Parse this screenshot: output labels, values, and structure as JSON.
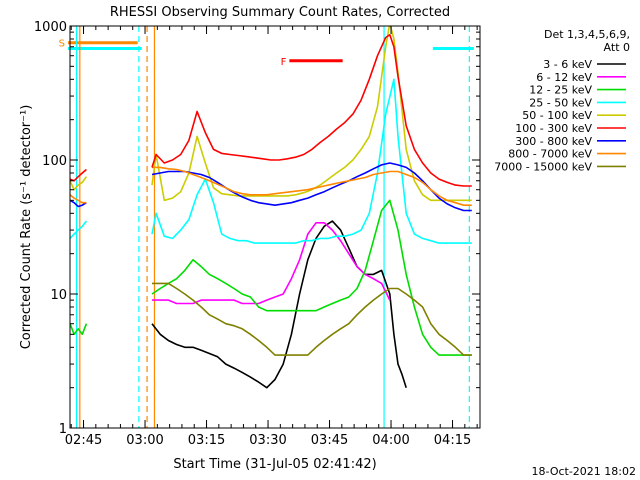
{
  "chart_data": {
    "type": "line",
    "title": "RHESSI Observing Summary Count Rates, Corrected",
    "xlabel": "Start Time (31-Jul-05 02:41:42)",
    "ylabel": "Corrected Count Rate (s⁻¹ detector⁻¹)",
    "y_scale": "log",
    "ylim": [
      1,
      1000
    ],
    "xlim_minutes_after_start": [
      0,
      100
    ],
    "x_ticks": [
      {
        "label": "02:45",
        "t": 3.3
      },
      {
        "label": "03:00",
        "t": 18.3
      },
      {
        "label": "03:15",
        "t": 33.3
      },
      {
        "label": "03:30",
        "t": 48.3
      },
      {
        "label": "03:45",
        "t": 63.3
      },
      {
        "label": "04:00",
        "t": 78.3
      },
      {
        "label": "04:15",
        "t": 93.3
      }
    ],
    "y_ticks": [
      {
        "label": "1",
        "v": 1
      },
      {
        "label": "10",
        "v": 10
      },
      {
        "label": "100",
        "v": 100
      },
      {
        "label": "1000",
        "v": 1000
      }
    ],
    "legend": {
      "header1": "Det 1,3,4,5,6,9,",
      "header2": "Att 0",
      "placement": "right"
    },
    "series": [
      {
        "name": "3 - 6 keV",
        "color": "#000000",
        "segments": [
          {
            "t": [
              20,
              22,
              24,
              26,
              28,
              30,
              32,
              34,
              36,
              38,
              40,
              42,
              44,
              46,
              48,
              50,
              52,
              54,
              56,
              58,
              60,
              62,
              64,
              66,
              68,
              70,
              72,
              74,
              76,
              78,
              79,
              80,
              81,
              82
            ],
            "y": [
              6,
              5,
              4.5,
              4.2,
              4,
              4,
              3.8,
              3.6,
              3.4,
              3,
              2.8,
              2.6,
              2.4,
              2.2,
              2,
              2.3,
              3,
              5,
              10,
              18,
              26,
              32,
              35,
              30,
              22,
              16,
              14,
              14,
              15,
              10,
              5,
              3,
              2.5,
              2
            ]
          }
        ]
      },
      {
        "name": "6 - 12 keV",
        "color": "#ff00ff",
        "segments": [
          {
            "t": [
              20,
              22,
              24,
              26,
              28,
              30,
              32,
              34,
              36,
              38,
              40,
              42,
              44,
              46,
              48,
              50,
              52,
              54,
              56,
              58,
              60,
              62,
              64,
              66,
              68,
              70,
              72,
              74,
              76,
              78
            ],
            "y": [
              9,
              9,
              9,
              8.5,
              8.5,
              8.5,
              9,
              9,
              9,
              9,
              9,
              8.5,
              8.5,
              8.5,
              9,
              9.5,
              10,
              13,
              18,
              28,
              34,
              34,
              30,
              25,
              20,
              16,
              14,
              13,
              12,
              9
            ]
          }
        ]
      },
      {
        "name": "12 - 25 keV",
        "color": "#00dd00",
        "segments": [
          {
            "t": [
              0,
              1,
              2,
              3,
              4
            ],
            "y": [
              6,
              5,
              5.5,
              5,
              6
            ]
          },
          {
            "t": [
              20,
              22,
              24,
              26,
              28,
              30,
              32,
              34,
              36,
              38,
              40,
              42,
              44,
              46,
              48,
              50,
              52,
              54,
              56,
              58,
              60,
              62,
              64,
              66,
              68,
              70,
              72,
              74,
              76,
              78,
              80,
              82,
              84,
              86,
              88,
              90,
              92,
              94,
              96,
              98
            ],
            "y": [
              10,
              11,
              12,
              13,
              15,
              18,
              16,
              14,
              13,
              12,
              11,
              10,
              9.5,
              8,
              7.5,
              7.5,
              7.5,
              7.5,
              7.5,
              7.5,
              7.5,
              8,
              8.5,
              9,
              9.5,
              11,
              15,
              25,
              42,
              50,
              30,
              14,
              8,
              5,
              4,
              3.5,
              3.5,
              3.5,
              3.5,
              3.5
            ]
          }
        ]
      },
      {
        "name": "25 - 50 keV",
        "color": "#00ffff",
        "segments": [
          {
            "t": [
              0,
              1,
              2,
              3,
              4
            ],
            "y": [
              26,
              28,
              30,
              32,
              35
            ]
          },
          {
            "t": [
              20,
              21,
              23,
              25,
              27,
              29,
              31,
              33,
              35,
              37,
              39,
              41,
              43,
              45,
              47,
              49,
              51,
              53,
              55,
              57,
              59,
              61,
              63,
              65,
              67,
              69,
              71,
              73,
              75,
              77,
              79,
              80,
              82,
              84,
              86,
              88,
              90,
              92,
              94,
              96,
              98
            ],
            "y": [
              28,
              40,
              27,
              26,
              30,
              36,
              55,
              72,
              48,
              28,
              26,
              25,
              25,
              24,
              24,
              24,
              24,
              24,
              24,
              25,
              25,
              26,
              26,
              27,
              27,
              28,
              30,
              40,
              80,
              220,
              400,
              150,
              40,
              28,
              26,
              25,
              24,
              24,
              24,
              24,
              24
            ]
          }
        ]
      },
      {
        "name": "50 - 100 keV",
        "color": "#cccc00",
        "segments": [
          {
            "t": [
              0,
              1,
              2,
              3,
              4
            ],
            "y": [
              70,
              60,
              65,
              68,
              75
            ]
          },
          {
            "t": [
              20,
              21,
              23,
              25,
              27,
              29,
              31,
              33,
              35,
              37,
              39,
              41,
              43,
              45,
              47,
              49,
              51,
              53,
              55,
              57,
              59,
              61,
              63,
              65,
              67,
              69,
              71,
              73,
              75,
              77,
              78,
              79,
              80,
              82,
              84,
              86,
              88,
              90,
              92,
              94,
              96,
              98
            ],
            "y": [
              65,
              110,
              50,
              52,
              58,
              80,
              150,
              95,
              62,
              56,
              55,
              54,
              54,
              54,
              54,
              54,
              54,
              54,
              55,
              57,
              60,
              65,
              72,
              80,
              88,
              100,
              120,
              150,
              250,
              700,
              1050,
              800,
              450,
              120,
              70,
              55,
              50,
              50,
              50,
              50,
              50,
              50
            ]
          }
        ]
      },
      {
        "name": "100 - 300 keV",
        "color": "#ff0000",
        "segments": [
          {
            "t": [
              0,
              1,
              2,
              3,
              4
            ],
            "y": [
              72,
              70,
              75,
              80,
              85
            ]
          },
          {
            "t": [
              20,
              21,
              23,
              25,
              27,
              29,
              31,
              33,
              35,
              37,
              39,
              41,
              43,
              45,
              47,
              49,
              51,
              53,
              55,
              57,
              59,
              61,
              63,
              65,
              67,
              69,
              71,
              73,
              75,
              77,
              78,
              79,
              80,
              82,
              84,
              86,
              88,
              90,
              92,
              94,
              96,
              98
            ],
            "y": [
              88,
              110,
              95,
              100,
              110,
              140,
              230,
              160,
              120,
              112,
              110,
              108,
              106,
              104,
              102,
              100,
              100,
              102,
              105,
              110,
              120,
              135,
              150,
              170,
              190,
              220,
              280,
              400,
              600,
              820,
              860,
              700,
              420,
              180,
              120,
              95,
              80,
              72,
              68,
              65,
              64,
              64
            ]
          }
        ]
      },
      {
        "name": "300 - 800 keV",
        "color": "#0000ff",
        "segments": [
          {
            "t": [
              0,
              1,
              2,
              3,
              4
            ],
            "y": [
              50,
              48,
              45,
              46,
              48
            ]
          },
          {
            "t": [
              20,
              22,
              24,
              26,
              28,
              30,
              32,
              34,
              36,
              38,
              40,
              42,
              44,
              46,
              48,
              50,
              52,
              54,
              56,
              58,
              60,
              62,
              64,
              66,
              68,
              70,
              72,
              74,
              76,
              78,
              80,
              82,
              84,
              86,
              88,
              90,
              92,
              94,
              96,
              98
            ],
            "y": [
              78,
              80,
              82,
              82,
              82,
              80,
              78,
              74,
              68,
              62,
              57,
              53,
              50,
              48,
              47,
              46,
              47,
              48,
              50,
              52,
              55,
              58,
              62,
              66,
              70,
              75,
              80,
              86,
              92,
              95,
              92,
              88,
              80,
              70,
              60,
              52,
              47,
              44,
              42,
              42
            ]
          }
        ]
      },
      {
        "name": "800 - 7000 keV",
        "color": "#ff8800",
        "segments": [
          {
            "t": [
              0,
              1,
              2,
              3,
              4
            ],
            "y": [
              55,
              52,
              50,
              48,
              48
            ]
          },
          {
            "t": [
              20,
              22,
              24,
              26,
              28,
              30,
              32,
              34,
              36,
              38,
              40,
              42,
              44,
              46,
              48,
              50,
              52,
              54,
              56,
              58,
              60,
              62,
              64,
              66,
              68,
              70,
              72,
              74,
              76,
              78,
              80,
              82,
              84,
              86,
              88,
              90,
              92,
              94,
              96,
              98
            ],
            "y": [
              88,
              88,
              86,
              85,
              82,
              78,
              74,
              70,
              66,
              62,
              58,
              56,
              55,
              55,
              55,
              56,
              57,
              58,
              59,
              60,
              62,
              64,
              66,
              68,
              70,
              72,
              74,
              78,
              80,
              82,
              82,
              78,
              74,
              68,
              60,
              54,
              50,
              48,
              46,
              46
            ]
          }
        ]
      },
      {
        "name": "7000 - 15000 keV",
        "color": "#808000",
        "segments": [
          {
            "t": [
              20,
              22,
              24,
              26,
              28,
              30,
              32,
              34,
              36,
              38,
              40,
              42,
              44,
              46,
              48,
              50,
              52,
              54,
              56,
              58,
              60,
              62,
              64,
              66,
              68,
              70,
              72,
              74,
              76,
              78,
              80,
              82,
              84,
              86,
              88,
              90,
              92,
              94,
              96,
              98
            ],
            "y": [
              12,
              12,
              12,
              11,
              10,
              9,
              8,
              7,
              6.5,
              6,
              5.8,
              5.5,
              5,
              4.5,
              4,
              3.5,
              3.5,
              3.5,
              3.5,
              3.5,
              4,
              4.5,
              5,
              5.5,
              6,
              7,
              8,
              9,
              10,
              11,
              11,
              10,
              9,
              8,
              6,
              5,
              4.5,
              4,
              3.5,
              3.5
            ]
          }
        ]
      }
    ],
    "flag_bars": [
      {
        "label": "S",
        "color": "#ff8800",
        "t_start": -0.5,
        "t_end": 16.5,
        "y": 750
      },
      {
        "label": "",
        "color": "#00ffff",
        "t_start": -0.5,
        "t_end": 17.5,
        "y": 680
      },
      {
        "label": "F",
        "color": "#ff0000",
        "t_start": 53.5,
        "t_end": 66.5,
        "y": 550
      },
      {
        "label": "",
        "color": "#00ffff",
        "t_start": 88.5,
        "t_end": 98.5,
        "y": 680
      }
    ],
    "marker_lines": [
      {
        "t": 1.6,
        "color": "#00ffff",
        "style": "solid"
      },
      {
        "t": 2.4,
        "color": "#ff8800",
        "style": "solid"
      },
      {
        "t": 16.8,
        "color": "#00ffff",
        "style": "dashed"
      },
      {
        "t": 18.8,
        "color": "#ff8800",
        "style": "dashed"
      },
      {
        "t": 20.6,
        "color": "#ff8800",
        "style": "solid"
      },
      {
        "t": 76.6,
        "color": "#00ffff",
        "style": "solid"
      },
      {
        "t": 97.4,
        "color": "#00ffff",
        "style": "dashed"
      }
    ]
  },
  "footer": {
    "timestamp": "18-Oct-2021 18:02"
  }
}
